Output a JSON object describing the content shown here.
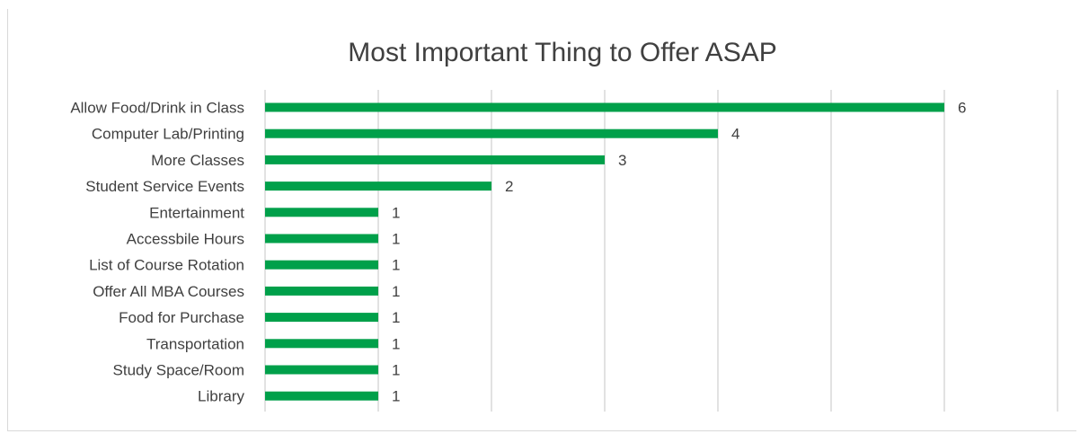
{
  "chart_data": {
    "type": "bar",
    "orientation": "horizontal",
    "title": "Most Important Thing to Offer ASAP",
    "xlabel": "",
    "ylabel": "",
    "categories": [
      "Allow Food/Drink in Class",
      "Computer Lab/Printing",
      "More Classes ",
      "Student Service Events ",
      "Entertainment",
      "Accessbile Hours",
      "List of Course Rotation",
      "Offer All MBA Courses",
      "Food for Purchase",
      "Transportation",
      "Study Space/Room",
      "Library"
    ],
    "values": [
      6,
      4,
      3,
      2,
      1,
      1,
      1,
      1,
      1,
      1,
      1,
      1
    ],
    "xlim": [
      0,
      7
    ],
    "grid": true,
    "data_labels": true,
    "bar_color": "#00a04a",
    "grid_color": "#d9d9d9",
    "text_color": "#404040"
  }
}
